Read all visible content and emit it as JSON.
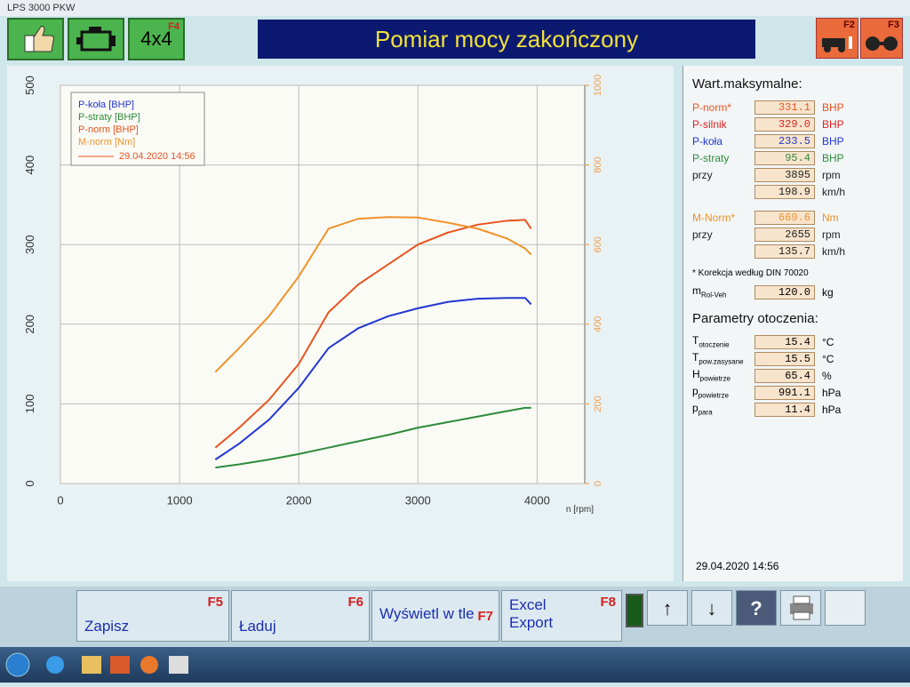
{
  "window_title": "LPS 3000 PKW",
  "header": {
    "title": "Pomiar mocy zakończony",
    "drive_button": "4x4",
    "drive_key": "F4",
    "key_f2": "F2",
    "key_f3": "F3"
  },
  "chart_data": {
    "type": "line",
    "x": [
      1300,
      1500,
      1750,
      2000,
      2250,
      2500,
      2750,
      3000,
      3250,
      3500,
      3750,
      3900,
      3950
    ],
    "xlim": [
      0,
      4400
    ],
    "xticks": [
      0,
      1000,
      2000,
      3000,
      4000
    ],
    "x_label": "n [rpm]",
    "ylim": [
      0,
      500
    ],
    "yticks": [
      0,
      100,
      200,
      300,
      400,
      500
    ],
    "y2lim": [
      0,
      1000
    ],
    "y2ticks": [
      0,
      200,
      400,
      600,
      800,
      1000
    ],
    "grid": true,
    "legend_date": "29.04.2020 14:56",
    "series": [
      {
        "name": "P-koła [BHP]",
        "color": "#2236d0",
        "values": [
          30,
          50,
          80,
          120,
          170,
          195,
          210,
          220,
          228,
          232,
          233,
          233,
          225
        ]
      },
      {
        "name": "P-straty [BHP]",
        "color": "#2e8b3a",
        "values": [
          20,
          24,
          30,
          37,
          45,
          53,
          61,
          70,
          77,
          84,
          91,
          95,
          95
        ]
      },
      {
        "name": "P-norm [BHP]",
        "color": "#e8541e",
        "values": [
          45,
          70,
          105,
          150,
          215,
          250,
          275,
          300,
          315,
          325,
          330,
          331,
          320
        ]
      },
      {
        "name": "M-norm [Nm]",
        "color": "#f0922a",
        "axis": "y2",
        "values": [
          280,
          340,
          420,
          520,
          640,
          665,
          669,
          668,
          655,
          640,
          615,
          590,
          575
        ]
      }
    ]
  },
  "max_values": {
    "title": "Wart.maksymalne:",
    "rows": [
      {
        "label": "P-norm*",
        "value": "331.1",
        "unit": "BHP",
        "color": "#e8541e"
      },
      {
        "label": "P-silnik",
        "value": "329.0",
        "unit": "BHP",
        "color": "#e02020"
      },
      {
        "label": "P-koła",
        "value": "233.5",
        "unit": "BHP",
        "color": "#2236d0"
      },
      {
        "label": "P-straty",
        "value": "95.4",
        "unit": "BHP",
        "color": "#2e8b3a"
      },
      {
        "label": "przy",
        "value": "3895",
        "unit": "rpm",
        "color": "#222222"
      },
      {
        "value": "198.9",
        "unit": "km/h",
        "color": "#222222"
      },
      {
        "label": "M-Norm*",
        "value": "669.6",
        "unit": "Nm",
        "color": "#f0922a"
      },
      {
        "label": "przy",
        "value": "2655",
        "unit": "rpm",
        "color": "#222222"
      },
      {
        "value": "135.7",
        "unit": "km/h",
        "color": "#222222"
      }
    ],
    "note": "* Korekcja według DIN 70020",
    "mass": {
      "label": "m",
      "sub": "Rol-Veh",
      "value": "120.0",
      "unit": "kg"
    }
  },
  "ambient": {
    "title": "Parametry otoczenia:",
    "rows": [
      {
        "label": "T",
        "sub": "otoczenie",
        "value": "15.4",
        "unit": "°C"
      },
      {
        "label": "T",
        "sub": "pow.zasysane",
        "value": "15.5",
        "unit": "°C"
      },
      {
        "label": "H",
        "sub": "powietrze",
        "value": "65.4",
        "unit": "%"
      },
      {
        "label": "p",
        "sub": "powietrze",
        "value": "991.1",
        "unit": "hPa"
      },
      {
        "label": "p",
        "sub": "para",
        "value": "11.4",
        "unit": "hPa"
      }
    ]
  },
  "date": "29.04.2020 14:56",
  "footer": {
    "buttons": [
      {
        "label": "Zapisz",
        "key": "F5"
      },
      {
        "label": "Ładuj",
        "key": "F6"
      },
      {
        "label": "Wyświetl w tle",
        "key": "F7"
      },
      {
        "label": "Excel Export",
        "key": "F8"
      }
    ],
    "up": "↑",
    "down": "↓",
    "help": "?"
  }
}
